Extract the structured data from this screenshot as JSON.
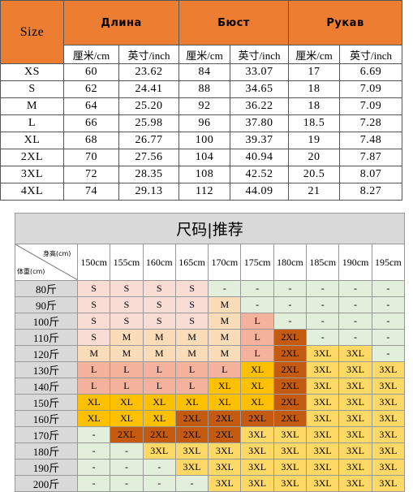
{
  "size_table": {
    "header": [
      "Size",
      "Длина",
      "Бюст",
      "Рукав"
    ],
    "units": [
      "厘米/cm",
      "英寸/inch",
      "厘米/cm",
      "英寸/inch",
      "厘米/cm",
      "英寸/inch"
    ],
    "rows": [
      [
        "XS",
        "60",
        "23.62",
        "84",
        "33.07",
        "17",
        "6.69"
      ],
      [
        "S",
        "62",
        "24.41",
        "88",
        "34.65",
        "18",
        "7.09"
      ],
      [
        "M",
        "64",
        "25.20",
        "92",
        "36.22",
        "18",
        "7.09"
      ],
      [
        "L",
        "66",
        "25.98",
        "96",
        "37.80",
        "18.5",
        "7.28"
      ],
      [
        "XL",
        "68",
        "26.77",
        "100",
        "39.37",
        "19",
        "7.48"
      ],
      [
        "2XL",
        "70",
        "27.56",
        "104",
        "40.94",
        "20",
        "7.87"
      ],
      [
        "3XL",
        "72",
        "28.35",
        "108",
        "42.52",
        "20.5",
        "8.07"
      ],
      [
        "4XL",
        "74",
        "29.13",
        "112",
        "44.09",
        "21",
        "8.27"
      ]
    ]
  },
  "fit_table": {
    "title": "尺码|推荐",
    "corner_top": "身高(cm)",
    "corner_bottom": "体重(cm)",
    "heights": [
      "150cm",
      "155cm",
      "160cm",
      "165cm",
      "170cm",
      "175cm",
      "180cm",
      "185cm",
      "190cm",
      "195cm"
    ],
    "colors": {
      "S": "#f9dcd4",
      "M": "#fbdcb8",
      "L": "#f4b19b",
      "XL": "#ffc000",
      "2XL": "#c55a11",
      "3XL": "#ffd966",
      "-": "#e2efda"
    },
    "rows": [
      {
        "weight": "80斤",
        "sizes": [
          "S",
          "S",
          "S",
          "S",
          "-",
          "-",
          "-",
          "-",
          "-",
          "-"
        ]
      },
      {
        "weight": "90斤",
        "sizes": [
          "S",
          "S",
          "S",
          "S",
          "M",
          "-",
          "-",
          "-",
          "-",
          "-"
        ]
      },
      {
        "weight": "100斤",
        "sizes": [
          "S",
          "S",
          "S",
          "S",
          "M",
          "L",
          "-",
          "-",
          "-",
          "-"
        ]
      },
      {
        "weight": "110斤",
        "sizes": [
          "S",
          "M",
          "M",
          "M",
          "M",
          "L",
          "2XL",
          "-",
          "-",
          "-"
        ]
      },
      {
        "weight": "120斤",
        "sizes": [
          "M",
          "M",
          "M",
          "M",
          "M",
          "L",
          "2XL",
          "3XL",
          "3XL",
          "-"
        ]
      },
      {
        "weight": "130斤",
        "sizes": [
          "L",
          "L",
          "L",
          "L",
          "L",
          "XL",
          "2XL",
          "3XL",
          "3XL",
          "3XL"
        ]
      },
      {
        "weight": "140斤",
        "sizes": [
          "L",
          "L",
          "L",
          "L",
          "XL",
          "XL",
          "2XL",
          "3XL",
          "3XL",
          "3XL"
        ]
      },
      {
        "weight": "150斤",
        "sizes": [
          "XL",
          "XL",
          "XL",
          "XL",
          "XL",
          "XL",
          "2XL",
          "3XL",
          "3XL",
          "3XL"
        ]
      },
      {
        "weight": "160斤",
        "sizes": [
          "XL",
          "XL",
          "XL",
          "2XL",
          "2XL",
          "2XL",
          "2XL",
          "3XL",
          "3XL",
          "3XL"
        ]
      },
      {
        "weight": "170斤",
        "sizes": [
          "-",
          "2XL",
          "2XL",
          "2XL",
          "2XL",
          "3XL",
          "3XL",
          "3XL",
          "3XL",
          "3XL"
        ]
      },
      {
        "weight": "180斤",
        "sizes": [
          "-",
          "-",
          "3XL",
          "3XL",
          "3XL",
          "3XL",
          "3XL",
          "3XL",
          "3XL",
          "3XL"
        ]
      },
      {
        "weight": "190斤",
        "sizes": [
          "-",
          "-",
          "-",
          "3XL",
          "3XL",
          "3XL",
          "3XL",
          "3XL",
          "3XL",
          "3XL"
        ]
      },
      {
        "weight": "200斤",
        "sizes": [
          "-",
          "-",
          "-",
          "-",
          "3XL",
          "3XL",
          "3XL",
          "3XL",
          "3XL",
          "3XL"
        ]
      }
    ]
  }
}
